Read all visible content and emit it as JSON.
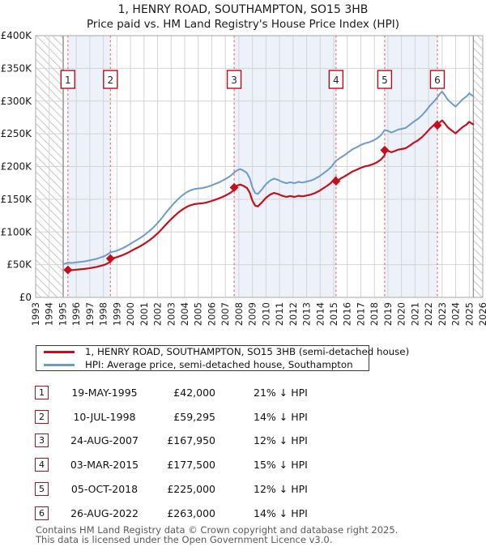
{
  "page": {
    "window_title": "1, HENRY ROAD, SOUTHAMPTON, SO15 3HB"
  },
  "legend": {
    "items": [
      {
        "label": "1, HENRY ROAD, SOUTHAMPTON, SO15 3HB (semi-detached house)",
        "color": "#c3101c"
      },
      {
        "label": "HPI: Average price, semi-detached house, Southampton",
        "color": "#6d9cc9"
      }
    ]
  },
  "table": {
    "rows": [
      {
        "num": "1",
        "date": "19-MAY-1995",
        "price": "£42,000",
        "vs_hpi": "21% ↓ HPI"
      },
      {
        "num": "2",
        "date": "10-JUL-1998",
        "price": "£59,295",
        "vs_hpi": "14% ↓ HPI"
      },
      {
        "num": "3",
        "date": "24-AUG-2007",
        "price": "£167,950",
        "vs_hpi": "12% ↓ HPI"
      },
      {
        "num": "4",
        "date": "03-MAR-2015",
        "price": "£177,500",
        "vs_hpi": "15% ↓ HPI"
      },
      {
        "num": "5",
        "date": "05-OCT-2018",
        "price": "£225,000",
        "vs_hpi": "12% ↓ HPI"
      },
      {
        "num": "6",
        "date": "26-AUG-2022",
        "price": "£263,000",
        "vs_hpi": "14% ↓ HPI"
      }
    ]
  },
  "footer": {
    "line1": "Contains HM Land Registry data © Crown copyright and database right 2025.",
    "line2": "This data is licensed under the Open Government Licence v3.0."
  },
  "chart_data": {
    "type": "line",
    "title": "1, HENRY ROAD, SOUTHAMPTON, SO15 3HB",
    "subtitle": "Price paid vs. HM Land Registry's House Price Index (HPI)",
    "values_unit": "GBP thousands",
    "x_axis": {
      "min": 1993,
      "max": 2026,
      "tick_labels": [
        "1993",
        "1994",
        "1995",
        "1996",
        "1997",
        "1998",
        "1999",
        "2000",
        "2001",
        "2002",
        "2003",
        "2004",
        "2005",
        "2006",
        "2007",
        "2008",
        "2009",
        "2010",
        "2011",
        "2012",
        "2013",
        "2014",
        "2015",
        "2016",
        "2017",
        "2018",
        "2019",
        "2020",
        "2021",
        "2022",
        "2023",
        "2024",
        "2025",
        "2026"
      ]
    },
    "y_axis": {
      "max_k": 400,
      "ticks": [
        {
          "v": 0,
          "label": "£0"
        },
        {
          "v": 50,
          "label": "£50K"
        },
        {
          "v": 100,
          "label": "£100K"
        },
        {
          "v": 150,
          "label": "£150K"
        },
        {
          "v": 200,
          "label": "£200K"
        },
        {
          "v": 250,
          "label": "£250K"
        },
        {
          "v": 300,
          "label": "£300K"
        },
        {
          "v": 350,
          "label": "£350K"
        },
        {
          "v": 400,
          "label": "£400K"
        }
      ]
    },
    "sales": [
      {
        "n": 1,
        "date": "19-MAY-1995",
        "year": 1995.38,
        "price_k": 42,
        "price_label": "£42,000",
        "vs_hpi": "21% ↓ HPI"
      },
      {
        "n": 2,
        "date": "10-JUL-1998",
        "year": 1998.52,
        "price_k": 59.295,
        "price_label": "£59,295",
        "vs_hpi": "14% ↓ HPI"
      },
      {
        "n": 3,
        "date": "24-AUG-2007",
        "year": 2007.65,
        "price_k": 167.95,
        "price_label": "£167,950",
        "vs_hpi": "12% ↓ HPI"
      },
      {
        "n": 4,
        "date": "03-MAR-2015",
        "year": 2015.17,
        "price_k": 177.5,
        "price_label": "£177,500",
        "vs_hpi": "15% ↓ HPI"
      },
      {
        "n": 5,
        "date": "05-OCT-2018",
        "year": 2018.76,
        "price_k": 225,
        "price_label": "£225,000",
        "vs_hpi": "12% ↓ HPI"
      },
      {
        "n": 6,
        "date": "26-AUG-2022",
        "year": 2022.65,
        "price_k": 263,
        "price_label": "£263,000",
        "vs_hpi": "14% ↓ HPI"
      }
    ],
    "shaded_periods": [
      [
        1,
        2
      ],
      [
        3,
        4
      ],
      [
        5,
        6
      ]
    ],
    "hpi_series": {
      "name": "HPI: Average price, semi-detached house, Southampton",
      "points": [
        [
          1995.04,
          50.8
        ],
        [
          1995.21,
          51.8
        ],
        [
          1995.38,
          53.2
        ],
        [
          1995.6,
          52.6
        ],
        [
          1995.8,
          53.0
        ],
        [
          1996.0,
          53.6
        ],
        [
          1996.3,
          54.2
        ],
        [
          1996.6,
          55.0
        ],
        [
          1996.9,
          56.2
        ],
        [
          1997.2,
          57.6
        ],
        [
          1997.5,
          59.0
        ],
        [
          1997.8,
          61.0
        ],
        [
          1998.1,
          63.2
        ],
        [
          1998.3,
          65.8
        ],
        [
          1998.52,
          68.9
        ],
        [
          1998.8,
          70.2
        ],
        [
          1999.0,
          71.5
        ],
        [
          1999.3,
          74.0
        ],
        [
          1999.6,
          77.0
        ],
        [
          1999.9,
          80.5
        ],
        [
          2000.2,
          84.5
        ],
        [
          2000.5,
          88.0
        ],
        [
          2000.8,
          92.0
        ],
        [
          2001.1,
          96.5
        ],
        [
          2001.4,
          101.5
        ],
        [
          2001.7,
          107.0
        ],
        [
          2002.0,
          113.5
        ],
        [
          2002.3,
          121.0
        ],
        [
          2002.6,
          129.0
        ],
        [
          2002.9,
          136.5
        ],
        [
          2003.2,
          143.5
        ],
        [
          2003.5,
          150.0
        ],
        [
          2003.8,
          155.5
        ],
        [
          2004.1,
          160.0
        ],
        [
          2004.4,
          163.5
        ],
        [
          2004.7,
          165.5
        ],
        [
          2005.0,
          166.5
        ],
        [
          2005.3,
          167.0
        ],
        [
          2005.6,
          168.5
        ],
        [
          2005.9,
          170.5
        ],
        [
          2006.2,
          173.0
        ],
        [
          2006.5,
          175.5
        ],
        [
          2006.8,
          178.5
        ],
        [
          2007.1,
          182.0
        ],
        [
          2007.4,
          186.0
        ],
        [
          2007.65,
          190.9
        ],
        [
          2007.9,
          194.5
        ],
        [
          2008.1,
          196.0
        ],
        [
          2008.35,
          193.5
        ],
        [
          2008.6,
          190.0
        ],
        [
          2008.8,
          182.0
        ],
        [
          2009.0,
          168.0
        ],
        [
          2009.2,
          159.5
        ],
        [
          2009.4,
          158.0
        ],
        [
          2009.7,
          165.0
        ],
        [
          2010.0,
          173.0
        ],
        [
          2010.3,
          178.5
        ],
        [
          2010.6,
          181.5
        ],
        [
          2010.9,
          179.5
        ],
        [
          2011.2,
          176.5
        ],
        [
          2011.5,
          174.5
        ],
        [
          2011.8,
          176.0
        ],
        [
          2012.1,
          174.5
        ],
        [
          2012.4,
          176.5
        ],
        [
          2012.7,
          175.5
        ],
        [
          2013.0,
          177.0
        ],
        [
          2013.3,
          178.5
        ],
        [
          2013.6,
          181.0
        ],
        [
          2013.9,
          184.5
        ],
        [
          2014.2,
          189.0
        ],
        [
          2014.5,
          193.5
        ],
        [
          2014.8,
          199.0
        ],
        [
          2015.17,
          208.8
        ],
        [
          2015.5,
          213.5
        ],
        [
          2015.8,
          217.5
        ],
        [
          2016.1,
          222.0
        ],
        [
          2016.4,
          226.5
        ],
        [
          2016.7,
          229.5
        ],
        [
          2017.0,
          233.0
        ],
        [
          2017.3,
          235.5
        ],
        [
          2017.6,
          237.0
        ],
        [
          2017.9,
          239.5
        ],
        [
          2018.2,
          243.0
        ],
        [
          2018.5,
          248.0
        ],
        [
          2018.76,
          255.7
        ],
        [
          2019.0,
          254.5
        ],
        [
          2019.25,
          252.0
        ],
        [
          2019.5,
          254.0
        ],
        [
          2019.75,
          256.5
        ],
        [
          2020.0,
          257.5
        ],
        [
          2020.3,
          259.0
        ],
        [
          2020.6,
          263.5
        ],
        [
          2020.9,
          268.5
        ],
        [
          2021.2,
          272.5
        ],
        [
          2021.5,
          278.0
        ],
        [
          2021.8,
          285.0
        ],
        [
          2022.1,
          293.0
        ],
        [
          2022.4,
          299.5
        ],
        [
          2022.65,
          305.8
        ],
        [
          2022.85,
          311.5
        ],
        [
          2023.0,
          314.5
        ],
        [
          2023.2,
          309.0
        ],
        [
          2023.4,
          302.5
        ],
        [
          2023.6,
          298.5
        ],
        [
          2023.8,
          295.0
        ],
        [
          2024.0,
          291.5
        ],
        [
          2024.2,
          296.0
        ],
        [
          2024.5,
          302.5
        ],
        [
          2024.8,
          307.0
        ],
        [
          2025.0,
          312.0
        ],
        [
          2025.15,
          309.5
        ],
        [
          2025.3,
          307.5
        ]
      ]
    },
    "colors": {
      "price": "#c3101c",
      "hpi": "#6d9cc9",
      "dashed": "#f06a6a",
      "band": "#edf1f9",
      "grid": "#d4d4d4",
      "border": "#a6a6a6",
      "hatch": "#c6c6c6",
      "hatch_edge": "#7a7a7a",
      "box_border": "#b20f1a",
      "text_dark": "#1a1a1a"
    }
  }
}
